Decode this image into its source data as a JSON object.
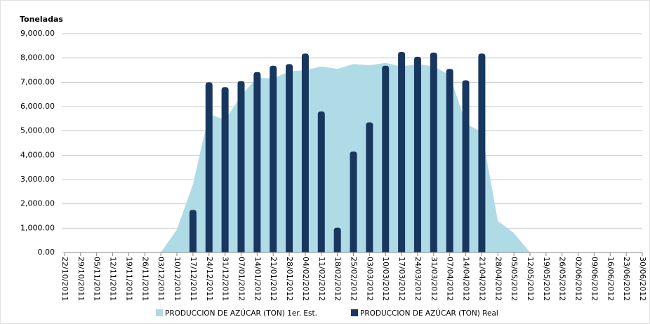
{
  "chart_data": {
    "type": "area_bar",
    "y_axis_label": "Toneladas",
    "categories": [
      "22/10/2011",
      "29/10/2011",
      "05/11/2011",
      "12/11/2011",
      "19/11/2011",
      "26/11/2011",
      "03/12/2011",
      "10/12/2011",
      "17/12/2011",
      "24/12/2011",
      "31/12/2011",
      "07/01/2012",
      "14/01/2012",
      "21/01/2012",
      "28/01/2012",
      "04/02/2012",
      "11/02/2012",
      "18/02/2012",
      "25/02/2012",
      "03/03/2012",
      "10/03/2012",
      "17/03/2012",
      "24/03/2012",
      "31/03/2012",
      "07/04/2012",
      "14/04/2012",
      "21/04/2012",
      "28/04/2012",
      "05/05/2012",
      "12/05/2012",
      "19/05/2012",
      "26/05/2012",
      "02/06/2012",
      "09/06/2012",
      "16/06/2012",
      "23/06/2012",
      "30/06/2012"
    ],
    "series": [
      {
        "name": "PRODUCCION DE AZÚCAR (TON) 1er. Est.",
        "type": "area",
        "color": "#aedbe6",
        "values": [
          0,
          0,
          0,
          0,
          0,
          0,
          0,
          950,
          2800,
          5700,
          5450,
          6450,
          7200,
          7150,
          7450,
          7500,
          7650,
          7550,
          7750,
          7700,
          7800,
          7650,
          7750,
          7650,
          7300,
          5300,
          4950,
          1300,
          800,
          0,
          0,
          0,
          0,
          0,
          0,
          0,
          0
        ]
      },
      {
        "name": "PRODUCCION DE AZÚCAR (TON) Real",
        "type": "bar",
        "color": "#17375e",
        "values": [
          null,
          null,
          null,
          null,
          null,
          null,
          null,
          null,
          1750,
          7000,
          6800,
          7050,
          7420,
          7680,
          7750,
          8180,
          5800,
          1020,
          4150,
          5350,
          7680,
          8250,
          8050,
          8220,
          7550,
          7080,
          8180,
          null,
          null,
          null,
          null,
          null,
          null,
          null,
          null,
          null,
          null
        ]
      }
    ],
    "ylim": [
      0,
      9000
    ],
    "yticks": [
      {
        "value": 0,
        "label": "0.00"
      },
      {
        "value": 1000,
        "label": "1,000.00"
      },
      {
        "value": 2000,
        "label": "2,000.00"
      },
      {
        "value": 3000,
        "label": "3,000.00"
      },
      {
        "value": 4000,
        "label": "4,000.00"
      },
      {
        "value": 5000,
        "label": "5,000.00"
      },
      {
        "value": 6000,
        "label": "6,000.00"
      },
      {
        "value": 7000,
        "label": "7,000.00"
      },
      {
        "value": 8000,
        "label": "8,000.00"
      },
      {
        "value": 9000,
        "label": "9,000.00"
      }
    ],
    "grid": true,
    "legend": "bottom"
  }
}
